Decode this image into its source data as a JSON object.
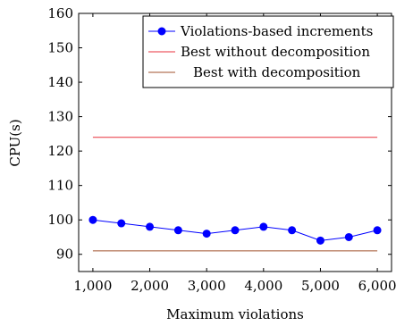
{
  "chart_data": {
    "type": "line",
    "xlabel": "Maximum violations",
    "ylabel": "CPU(s)",
    "xlim": [
      750,
      6250
    ],
    "ylim": [
      85,
      160
    ],
    "x_ticks": [
      1000,
      2000,
      3000,
      4000,
      5000,
      6000
    ],
    "x_tick_labels": [
      "1,000",
      "2,000",
      "3,000",
      "4,000",
      "5,000",
      "6,000"
    ],
    "y_ticks": [
      90,
      100,
      110,
      120,
      130,
      140,
      150,
      160
    ],
    "y_tick_labels": [
      "90",
      "100",
      "110",
      "120",
      "130",
      "140",
      "150",
      "160"
    ],
    "legend_position": "top-right",
    "grid": false,
    "series": [
      {
        "name": "Violations-based increments",
        "color": "#0000ff",
        "marker": "circle",
        "x": [
          1000,
          1500,
          2000,
          2500,
          3000,
          3500,
          4000,
          4500,
          5000,
          5500,
          6000
        ],
        "y": [
          100,
          99,
          98,
          97,
          96,
          97,
          98,
          97,
          94,
          95,
          97
        ]
      },
      {
        "name": "Best without decomposition",
        "color": "#e8323c",
        "marker": "none",
        "x": [
          1000,
          6000
        ],
        "y": [
          124,
          124
        ]
      },
      {
        "name": "Best with decomposition",
        "color": "#a0522d",
        "marker": "none",
        "x": [
          1000,
          6000
        ],
        "y": [
          91,
          91
        ]
      }
    ]
  }
}
